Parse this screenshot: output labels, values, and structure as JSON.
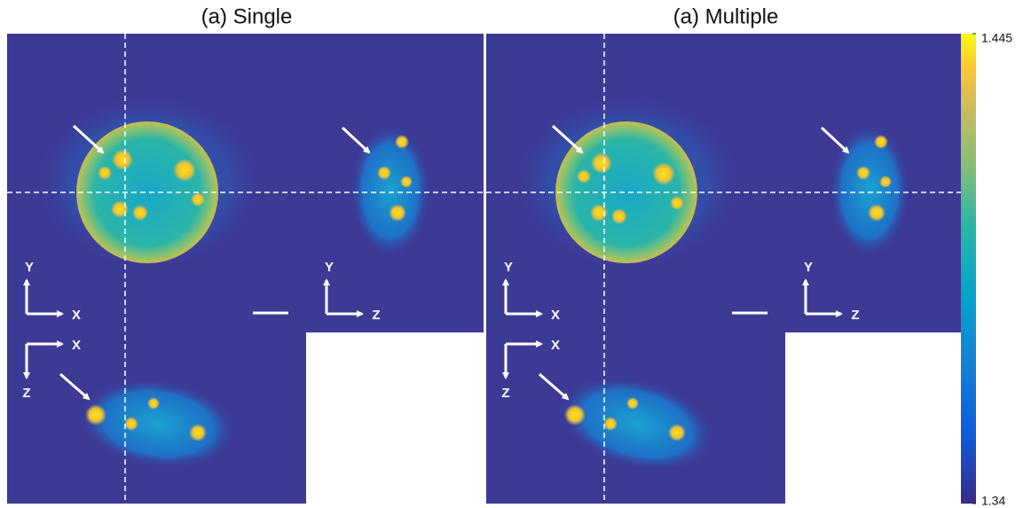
{
  "panels": [
    {
      "title": "(a) Single",
      "views": [
        {
          "vertical": "Y",
          "horizontal": "X"
        },
        {
          "vertical": "Y",
          "horizontal": "Z"
        },
        {
          "vertical": "Z",
          "horizontal": "X"
        }
      ]
    },
    {
      "title": "(a) Multiple",
      "views": [
        {
          "vertical": "Y",
          "horizontal": "X"
        },
        {
          "vertical": "Y",
          "horizontal": "Z"
        },
        {
          "vertical": "Z",
          "horizontal": "X"
        }
      ]
    }
  ],
  "colorbar": {
    "range": [
      1.34,
      1.445
    ],
    "ticks": [
      1.34,
      1.445
    ]
  }
}
